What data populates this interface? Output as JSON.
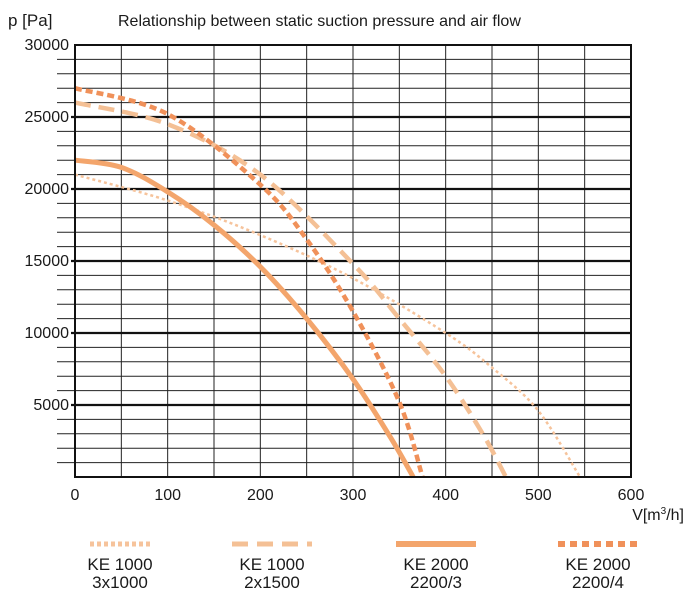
{
  "chart_data": {
    "type": "line",
    "title": "Relationship between static suction pressure and air flow",
    "ylabel": "p [Pa]",
    "xlabel_prefix": "V[m",
    "xlabel_sup": "3",
    "xlabel_suffix": "/h]",
    "xlim": [
      0,
      600
    ],
    "ylim": [
      0,
      30000
    ],
    "x_ticks": [
      "0",
      "100",
      "200",
      "300",
      "400",
      "500",
      "600"
    ],
    "y_ticks": [
      "5000",
      "10000",
      "15000",
      "20000",
      "25000",
      "30000"
    ],
    "grid": true,
    "legend_position": "bottom",
    "series": [
      {
        "name": "KE 1000 3x1000",
        "legend_line1": "KE 1000",
        "legend_line2": "3x1000",
        "style": "dotted",
        "color": "#f6c39b",
        "points": [
          [
            0,
            21000
          ],
          [
            100,
            19200
          ],
          [
            200,
            16800
          ],
          [
            300,
            13800
          ],
          [
            400,
            10000
          ],
          [
            450,
            7600
          ],
          [
            500,
            4600
          ],
          [
            545,
            0
          ]
        ]
      },
      {
        "name": "KE 1000 2x1500",
        "legend_line1": "KE 1000",
        "legend_line2": "2x1500",
        "style": "dashed",
        "color": "#f4c095",
        "points": [
          [
            0,
            26000
          ],
          [
            100,
            24500
          ],
          [
            200,
            21000
          ],
          [
            300,
            14800
          ],
          [
            350,
            11000
          ],
          [
            400,
            7000
          ],
          [
            440,
            3000
          ],
          [
            465,
            0
          ]
        ]
      },
      {
        "name": "KE 2000 2200/3",
        "legend_line1": "KE 2000",
        "legend_line2": "2200/3",
        "style": "solid",
        "color": "#f3a56c",
        "points": [
          [
            0,
            22000
          ],
          [
            50,
            21500
          ],
          [
            100,
            19800
          ],
          [
            150,
            17500
          ],
          [
            200,
            14600
          ],
          [
            250,
            11000
          ],
          [
            300,
            6800
          ],
          [
            340,
            2800
          ],
          [
            365,
            0
          ]
        ]
      },
      {
        "name": "KE 2000 2200/4",
        "legend_line1": "KE 2000",
        "legend_line2": "2200/4",
        "style": "dotted-heavy",
        "color": "#f0915a",
        "points": [
          [
            0,
            27000
          ],
          [
            100,
            25200
          ],
          [
            200,
            20300
          ],
          [
            250,
            16500
          ],
          [
            300,
            11500
          ],
          [
            350,
            5200
          ],
          [
            375,
            0
          ]
        ]
      }
    ]
  }
}
